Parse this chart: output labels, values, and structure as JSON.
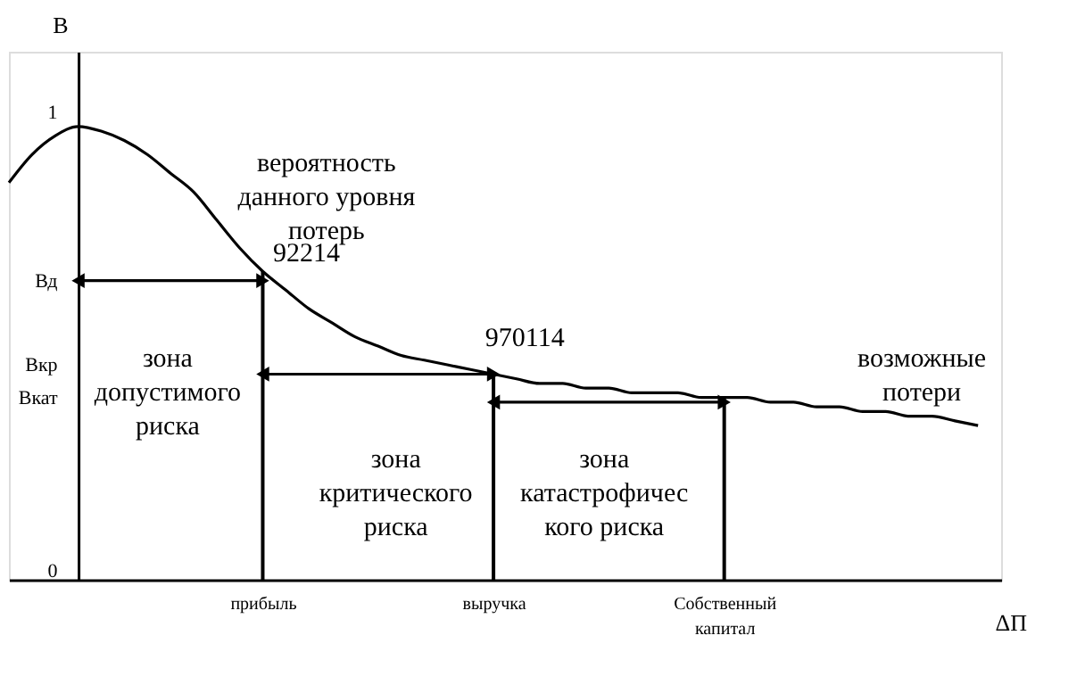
{
  "chart_data": {
    "type": "line",
    "xlabel": "ΔП",
    "ylabel": "В",
    "grid": false,
    "categories": [
      null,
      null,
      null,
      null,
      null,
      null,
      null,
      null,
      null,
      null,
      null,
      "прибыль",
      null,
      null,
      null,
      null,
      null,
      null,
      null,
      null,
      null,
      "выручка",
      null,
      null,
      null,
      null,
      null,
      null,
      null,
      null,
      null,
      "Собственный\nкапитал",
      null,
      null,
      null,
      null,
      null,
      null,
      null,
      null,
      null,
      null,
      null,
      null
    ],
    "ylim": [
      0,
      1.13
    ],
    "yticks": [
      {
        "value": 0,
        "label": "0"
      },
      {
        "value": 0.39,
        "label": "Вкат"
      },
      {
        "value": 0.46,
        "label": "Вкр"
      },
      {
        "value": 0.64,
        "label": "Вд"
      },
      {
        "value": 1,
        "label": "1"
      }
    ],
    "series": [
      {
        "color": "#000000",
        "values": [
          0.85,
          0.91,
          0.95,
          0.97,
          0.96,
          0.94,
          0.91,
          0.87,
          0.83,
          0.77,
          0.71,
          0.66,
          0.62,
          0.58,
          0.55,
          0.52,
          0.5,
          0.48,
          0.47,
          0.46,
          0.45,
          0.44,
          0.43,
          0.42,
          0.42,
          0.41,
          0.41,
          0.4,
          0.4,
          0.4,
          0.39,
          0.39,
          0.39,
          0.38,
          0.38,
          0.37,
          0.37,
          0.36,
          0.36,
          0.35,
          0.35,
          0.34,
          0.33,
          null
        ]
      },
      {
        "type": "bar",
        "color": "#000000",
        "values": [
          null,
          null,
          null,
          null,
          null,
          null,
          null,
          null,
          null,
          null,
          null,
          0.66,
          null,
          null,
          null,
          null,
          null,
          null,
          null,
          null,
          null,
          0.44,
          null,
          null,
          null,
          null,
          null,
          null,
          null,
          null,
          null,
          0.39,
          null,
          null,
          null,
          null,
          null,
          null,
          null,
          null,
          null,
          null,
          null,
          null
        ]
      },
      {
        "color": "#000000",
        "marker": "triangle",
        "values": [
          null,
          null,
          null,
          0.64,
          null,
          null,
          null,
          null,
          null,
          null,
          null,
          0.64,
          null,
          null,
          null,
          null,
          null,
          null,
          null,
          null,
          null,
          null,
          null,
          null,
          null,
          null,
          null,
          null,
          null,
          null,
          null,
          null,
          null,
          null,
          null,
          null,
          null,
          null,
          null,
          null,
          null,
          null,
          null,
          null
        ]
      },
      {
        "color": "#000000",
        "marker": "triangle",
        "values": [
          null,
          null,
          null,
          null,
          null,
          null,
          null,
          null,
          null,
          null,
          null,
          0.44,
          null,
          null,
          null,
          null,
          null,
          null,
          null,
          null,
          null,
          0.44,
          null,
          null,
          null,
          null,
          null,
          null,
          null,
          null,
          null,
          null,
          null,
          null,
          null,
          null,
          null,
          null,
          null,
          null,
          null,
          null,
          null,
          null
        ]
      },
      {
        "color": "#000000",
        "marker": "triangle",
        "values": [
          null,
          null,
          null,
          null,
          null,
          null,
          null,
          null,
          null,
          null,
          null,
          null,
          null,
          null,
          null,
          null,
          null,
          null,
          null,
          null,
          null,
          0.38,
          null,
          null,
          null,
          null,
          null,
          null,
          null,
          null,
          null,
          0.38,
          null,
          null,
          null,
          null,
          null,
          null,
          null,
          null,
          null,
          null,
          null,
          null
        ]
      }
    ],
    "annotations": [
      "вероятность\nданного уровня\nпотерь",
      "92214",
      "970114",
      "зона\nдопустимого\nриска",
      "зона\nкритического\nриска",
      "зона\nкатастрофичес\nкого риска",
      "возможные\nпотери"
    ]
  }
}
